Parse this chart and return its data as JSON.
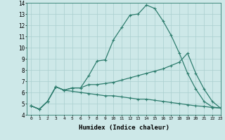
{
  "x_ticks": [
    0,
    1,
    2,
    3,
    4,
    5,
    6,
    7,
    8,
    9,
    10,
    11,
    12,
    13,
    14,
    15,
    16,
    17,
    18,
    19,
    20,
    21,
    22,
    23
  ],
  "line1_x": [
    0,
    1,
    2,
    3,
    4,
    5,
    6,
    7,
    8,
    9,
    10,
    11,
    12,
    13,
    14,
    15,
    16,
    17,
    18,
    19,
    20,
    21,
    22,
    23
  ],
  "line1_y": [
    4.8,
    4.5,
    5.2,
    6.5,
    6.2,
    6.4,
    6.4,
    7.5,
    8.8,
    8.9,
    10.7,
    11.8,
    12.9,
    13.0,
    13.8,
    13.5,
    12.4,
    11.1,
    9.5,
    7.7,
    6.3,
    5.2,
    4.7,
    4.6
  ],
  "line2_x": [
    0,
    1,
    2,
    3,
    4,
    5,
    6,
    7,
    8,
    9,
    10,
    11,
    12,
    13,
    14,
    15,
    16,
    17,
    18,
    19,
    20,
    21,
    22,
    23
  ],
  "line2_y": [
    4.8,
    4.5,
    5.2,
    6.5,
    6.2,
    6.4,
    6.4,
    6.7,
    6.7,
    6.8,
    6.9,
    7.1,
    7.3,
    7.5,
    7.7,
    7.9,
    8.1,
    8.4,
    8.7,
    9.5,
    7.7,
    6.3,
    5.2,
    4.6
  ],
  "line3_x": [
    0,
    1,
    2,
    3,
    4,
    5,
    6,
    7,
    8,
    9,
    10,
    11,
    12,
    13,
    14,
    15,
    16,
    17,
    18,
    19,
    20,
    21,
    22,
    23
  ],
  "line3_y": [
    4.8,
    4.5,
    5.2,
    6.5,
    6.2,
    6.1,
    6.0,
    5.9,
    5.8,
    5.7,
    5.7,
    5.6,
    5.5,
    5.4,
    5.4,
    5.3,
    5.2,
    5.1,
    5.0,
    4.9,
    4.8,
    4.75,
    4.65,
    4.6
  ],
  "line_color": "#2e7d6e",
  "marker": "+",
  "markersize": 3.5,
  "linewidth": 0.9,
  "xlabel": "Humidex (Indice chaleur)",
  "ylim": [
    4,
    14
  ],
  "xlim": [
    -0.5,
    23
  ],
  "yticks": [
    4,
    5,
    6,
    7,
    8,
    9,
    10,
    11,
    12,
    13,
    14
  ],
  "bg_color": "#cde8e8",
  "grid_color": "#aacfcf",
  "xlabel_fontsize": 6.5
}
